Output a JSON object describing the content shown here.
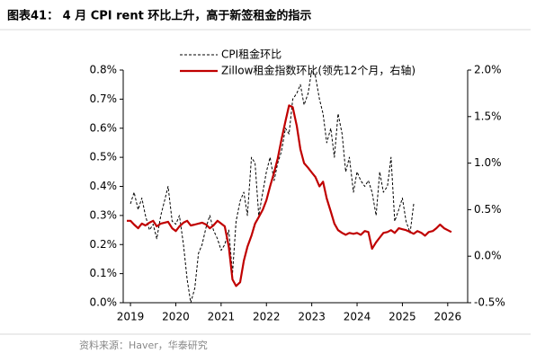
{
  "chart_data": {
    "type": "line",
    "title": "图表41： 4 月 CPI rent 环比上升，高于新签租金的指示",
    "source": "资料来源：Haver，华泰研究",
    "x": [
      2018.92,
      2019.0,
      2019.08,
      2019.17,
      2019.25,
      2019.33,
      2019.42,
      2019.5,
      2019.58,
      2019.67,
      2019.75,
      2019.83,
      2019.92,
      2020.0,
      2020.08,
      2020.17,
      2020.25,
      2020.33,
      2020.42,
      2020.5,
      2020.58,
      2020.67,
      2020.75,
      2020.83,
      2020.92,
      2021.0,
      2021.08,
      2021.17,
      2021.25,
      2021.33,
      2021.42,
      2021.5,
      2021.58,
      2021.67,
      2021.75,
      2021.83,
      2021.92,
      2022.0,
      2022.08,
      2022.17,
      2022.25,
      2022.33,
      2022.42,
      2022.5,
      2022.58,
      2022.67,
      2022.75,
      2022.83,
      2022.92,
      2023.0,
      2023.08,
      2023.17,
      2023.25,
      2023.33,
      2023.42,
      2023.5,
      2023.58,
      2023.67,
      2023.75,
      2023.83,
      2023.92,
      2024.0,
      2024.08,
      2024.17,
      2024.25,
      2024.33,
      2024.42,
      2024.5,
      2024.58,
      2024.67,
      2024.75,
      2024.83,
      2024.92,
      2025.0,
      2025.08,
      2025.17,
      2025.25,
      2025.33,
      2025.42,
      2025.5,
      2025.58,
      2025.67,
      2025.75,
      2025.83,
      2025.92,
      2026.0,
      2026.08
    ],
    "series": [
      {
        "name": "CPI租金环比",
        "color": "#000000",
        "dashed": true,
        "values": [
          null,
          0.34,
          0.38,
          0.32,
          0.36,
          0.3,
          0.25,
          0.27,
          0.22,
          0.3,
          0.35,
          0.4,
          0.28,
          0.27,
          0.3,
          0.2,
          0.08,
          0.0,
          0.05,
          0.17,
          0.2,
          0.26,
          0.3,
          0.25,
          0.22,
          0.18,
          0.2,
          0.25,
          0.1,
          0.28,
          0.35,
          0.38,
          0.3,
          0.5,
          0.48,
          0.3,
          0.38,
          0.45,
          0.5,
          0.42,
          0.48,
          0.52,
          0.6,
          0.58,
          0.7,
          0.72,
          0.75,
          0.68,
          0.72,
          0.8,
          0.78,
          0.7,
          0.65,
          0.55,
          0.6,
          0.5,
          0.65,
          0.58,
          0.45,
          0.5,
          0.38,
          0.45,
          0.42,
          0.4,
          0.42,
          0.38,
          0.3,
          0.45,
          0.38,
          0.4,
          0.5,
          0.28,
          0.32,
          0.36,
          0.28,
          0.24,
          0.34,
          null,
          null,
          null,
          null,
          null,
          null,
          null,
          null,
          null,
          null
        ]
      },
      {
        "name": "Zillow租金指数环比(领先12个月，右轴)",
        "color": "#c00000",
        "axis": "y2",
        "values": [
          0.38,
          0.38,
          0.34,
          0.3,
          0.35,
          0.33,
          0.36,
          0.38,
          0.32,
          0.35,
          0.36,
          0.37,
          0.3,
          0.27,
          0.32,
          0.36,
          0.38,
          0.33,
          0.34,
          0.35,
          0.36,
          0.34,
          0.3,
          0.33,
          0.38,
          0.35,
          0.32,
          0.1,
          -0.25,
          -0.32,
          -0.28,
          -0.05,
          0.1,
          0.22,
          0.35,
          0.42,
          0.5,
          0.6,
          0.75,
          0.9,
          1.05,
          1.25,
          1.45,
          1.62,
          1.6,
          1.4,
          1.15,
          1.0,
          0.95,
          0.9,
          0.85,
          0.75,
          0.8,
          0.62,
          0.48,
          0.35,
          0.28,
          0.25,
          0.23,
          0.25,
          0.24,
          0.25,
          0.23,
          0.27,
          0.26,
          0.08,
          0.15,
          0.2,
          0.25,
          0.26,
          0.28,
          0.25,
          0.3,
          0.29,
          0.28,
          0.26,
          0.24,
          0.27,
          0.25,
          0.22,
          0.26,
          0.27,
          0.3,
          0.34,
          0.3,
          0.28,
          0.26
        ]
      }
    ],
    "xlim": [
      2018.84,
      2026.44
    ],
    "xticks": [
      2019,
      2020,
      2021,
      2022,
      2023,
      2024,
      2025,
      2026
    ],
    "ylim": [
      0,
      0.8
    ],
    "yticks": [
      {
        "value": 0,
        "label": "0.0%"
      },
      {
        "value": 0.1,
        "label": "0.1%"
      },
      {
        "value": 0.2,
        "label": "0.2%"
      },
      {
        "value": 0.3,
        "label": "0.3%"
      },
      {
        "value": 0.4,
        "label": "0.4%"
      },
      {
        "value": 0.5,
        "label": "0.5%"
      },
      {
        "value": 0.6,
        "label": "0.6%"
      },
      {
        "value": 0.7,
        "label": "0.7%"
      },
      {
        "value": 0.8,
        "label": "0.8%"
      }
    ],
    "y2lim": [
      -0.5,
      2.0
    ],
    "y2ticks": [
      {
        "value": -0.5,
        "label": "-0.5%"
      },
      {
        "value": 0,
        "label": "0.0%"
      },
      {
        "value": 0.5,
        "label": "0.5%"
      },
      {
        "value": 1.0,
        "label": "1.0%"
      },
      {
        "value": 1.5,
        "label": "1.5%"
      },
      {
        "value": 2.0,
        "label": "2.0%"
      }
    ],
    "legend": "top"
  }
}
